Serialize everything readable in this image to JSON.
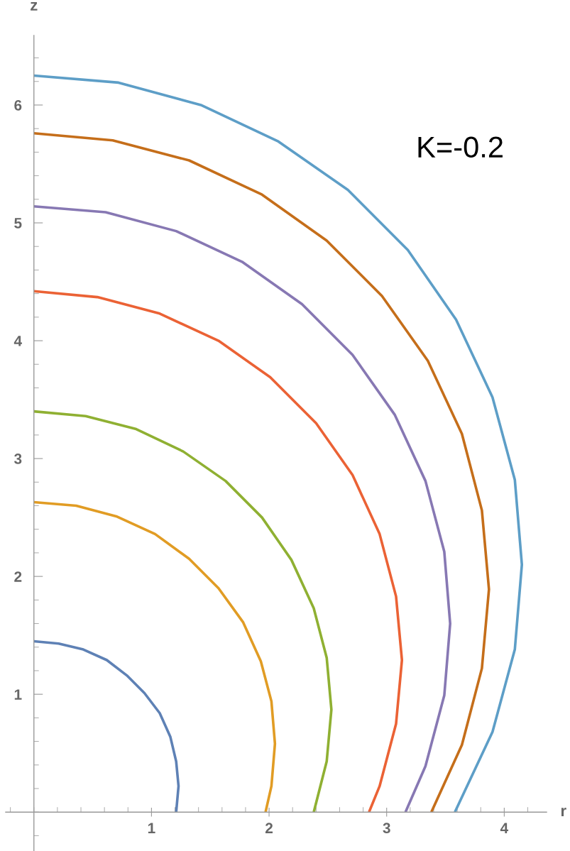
{
  "chart_data": {
    "type": "line",
    "xlabel": "r",
    "ylabel": "z",
    "annotations": [
      "K=-0.2"
    ],
    "xlim": [
      -0.24,
      4.36
    ],
    "ylim": [
      -0.33,
      6.59
    ],
    "xticks": [
      1,
      2,
      3,
      4
    ],
    "yticks": [
      1,
      2,
      3,
      4,
      5,
      6
    ],
    "grid": false,
    "line_style": "solid",
    "marker": "none",
    "series": [
      {
        "color": "#5e81b5",
        "x": [
          0,
          0.21,
          0.42,
          0.62,
          0.79,
          0.94,
          1.07,
          1.16,
          1.21,
          1.23,
          1.21
        ],
        "values": [
          1.45,
          1.43,
          1.38,
          1.29,
          1.16,
          1.01,
          0.84,
          0.64,
          0.43,
          0.22,
          0
        ]
      },
      {
        "color": "#e19c24",
        "x": [
          0,
          0.36,
          0.7,
          1.03,
          1.32,
          1.57,
          1.78,
          1.93,
          2.02,
          2.05,
          2.02,
          1.97
        ],
        "values": [
          2.63,
          2.6,
          2.51,
          2.36,
          2.15,
          1.9,
          1.61,
          1.28,
          0.94,
          0.58,
          0.22,
          0
        ]
      },
      {
        "color": "#8fb032",
        "x": [
          0,
          0.44,
          0.87,
          1.27,
          1.63,
          1.94,
          2.19,
          2.38,
          2.49,
          2.53,
          2.49,
          2.38
        ],
        "values": [
          3.4,
          3.36,
          3.25,
          3.06,
          2.81,
          2.5,
          2.14,
          1.73,
          1.31,
          0.87,
          0.43,
          0
        ]
      },
      {
        "color": "#eb6235",
        "x": [
          0,
          0.54,
          1.07,
          1.57,
          2.01,
          2.4,
          2.71,
          2.94,
          3.08,
          3.13,
          3.08,
          2.94,
          2.85
        ],
        "values": [
          4.42,
          4.37,
          4.23,
          4.0,
          3.69,
          3.3,
          2.86,
          2.36,
          1.83,
          1.29,
          0.75,
          0.22,
          0
        ]
      },
      {
        "color": "#8778b3",
        "x": [
          0,
          0.61,
          1.21,
          1.77,
          2.28,
          2.71,
          3.07,
          3.33,
          3.49,
          3.54,
          3.49,
          3.33,
          3.16
        ],
        "values": [
          5.14,
          5.09,
          4.93,
          4.67,
          4.31,
          3.88,
          3.37,
          2.81,
          2.21,
          1.6,
          0.99,
          0.39,
          0
        ]
      },
      {
        "color": "#c56e1a",
        "x": [
          0,
          0.67,
          1.32,
          1.94,
          2.49,
          2.96,
          3.35,
          3.64,
          3.81,
          3.87,
          3.81,
          3.64,
          3.38
        ],
        "values": [
          5.76,
          5.7,
          5.53,
          5.24,
          4.85,
          4.38,
          3.83,
          3.21,
          2.56,
          1.89,
          1.22,
          0.57,
          0
        ]
      },
      {
        "color": "#5d9ec7",
        "x": [
          0,
          0.72,
          1.42,
          2.08,
          2.67,
          3.18,
          3.59,
          3.9,
          4.09,
          4.15,
          4.09,
          3.9,
          3.58
        ],
        "values": [
          6.25,
          6.19,
          6.0,
          5.69,
          5.28,
          4.77,
          4.18,
          3.52,
          2.82,
          2.1,
          1.38,
          0.68,
          0
        ]
      }
    ]
  }
}
